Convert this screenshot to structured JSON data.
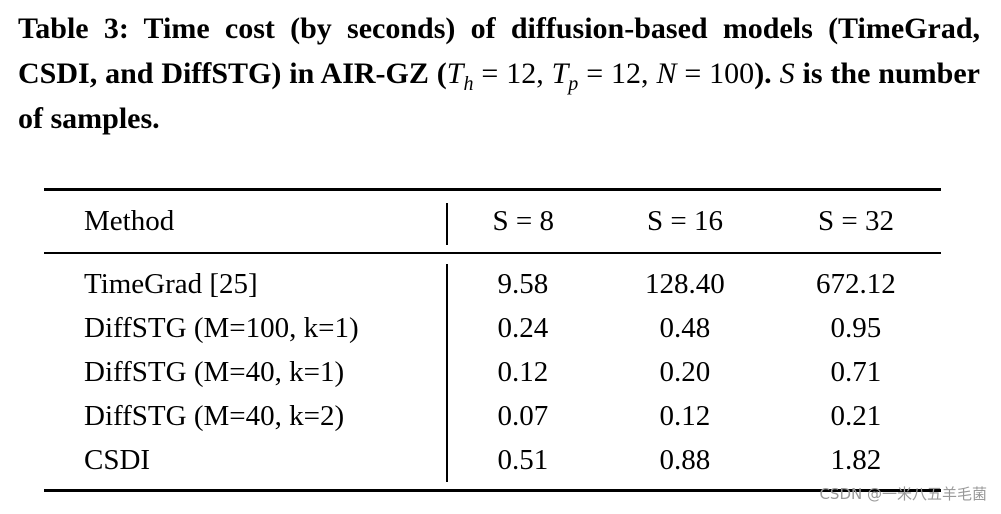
{
  "caption": [
    "Table 3: Time cost (by seconds) of diffusion-based models (TimeGrad, CSDI, and DiffSTG) in AIR-GZ (",
    "T",
    "h",
    " = 12, ",
    "T",
    "p",
    " = 12, ",
    "N",
    " = 100",
    "). ",
    "S",
    " is the number of samples."
  ],
  "table": {
    "header": [
      "Method",
      "S = 8",
      "S = 16",
      "S = 32"
    ],
    "rows": [
      [
        "TimeGrad [25]",
        "9.58",
        "128.40",
        "672.12"
      ],
      [
        "DiffSTG (M=100, k=1)",
        "0.24",
        "0.48",
        "0.95"
      ],
      [
        "DiffSTG (M=40, k=1)",
        "0.12",
        "0.20",
        "0.71"
      ],
      [
        "DiffSTG (M=40, k=2)",
        "0.07",
        "0.12",
        "0.21"
      ],
      [
        "CSDI",
        "0.51",
        "0.88",
        "1.82"
      ]
    ]
  },
  "watermark": "CSDN @一米八五羊毛菌"
}
